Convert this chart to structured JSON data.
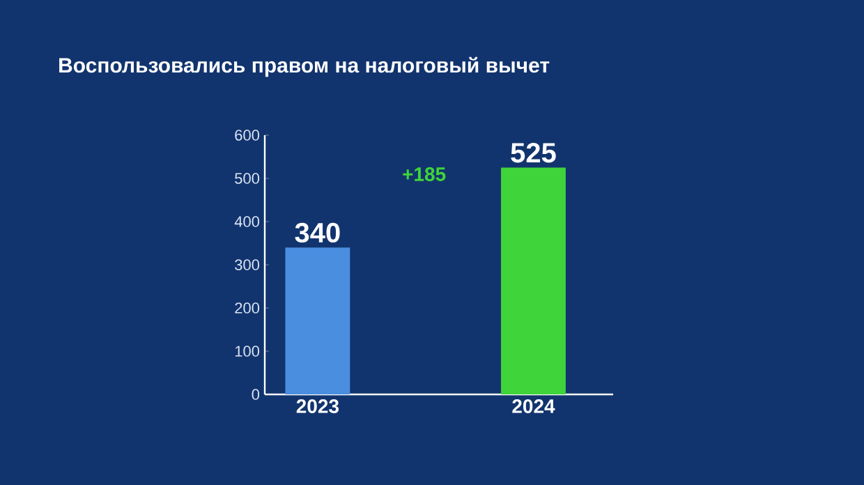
{
  "chart_data": {
    "type": "bar",
    "title": "Воспользовались правом на налоговый вычет",
    "categories": [
      "2023",
      "2024"
    ],
    "values": [
      340,
      525
    ],
    "colors": [
      "#4a8ee0",
      "#3fd43a"
    ],
    "ylim": [
      0,
      600
    ],
    "yticks": [
      0,
      100,
      200,
      300,
      400,
      500,
      600
    ],
    "data_labels": true,
    "annotations": [
      "+185"
    ]
  }
}
